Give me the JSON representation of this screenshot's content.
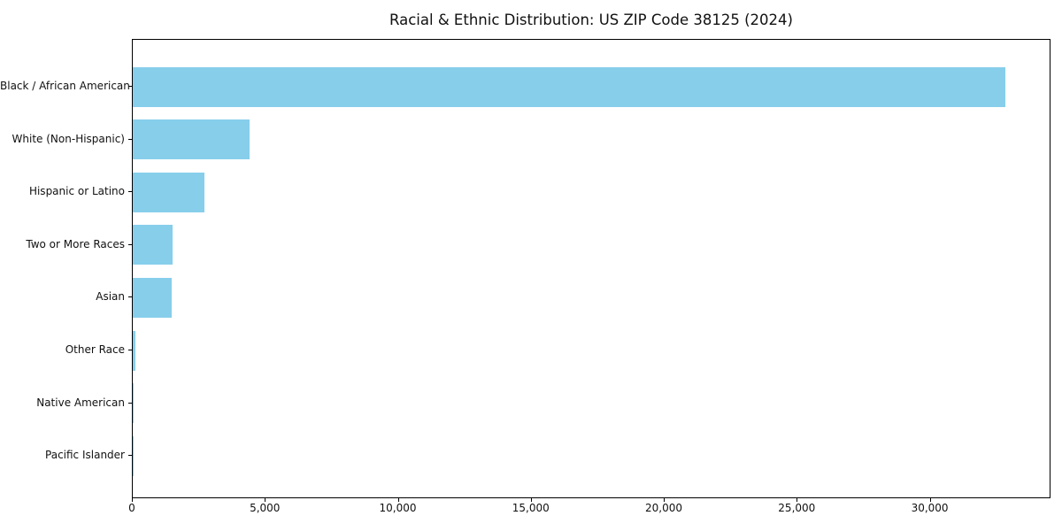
{
  "colors": {
    "bar": "#87CEEB",
    "axis": "#000000",
    "text": "#111111",
    "background": "#ffffff"
  },
  "chart_data": {
    "type": "bar",
    "orientation": "horizontal",
    "title": "Racial & Ethnic Distribution: US ZIP Code 38125 (2024)",
    "xlabel": "",
    "ylabel": "",
    "grid": false,
    "legend": false,
    "categories": [
      "Black / African American",
      "White (Non-Hispanic)",
      "Hispanic or Latino",
      "Two or More Races",
      "Asian",
      "Other Race",
      "Native American",
      "Pacific Islander"
    ],
    "values": [
      32800,
      4400,
      2700,
      1500,
      1470,
      100,
      40,
      15
    ],
    "xlim": [
      0,
      34540
    ],
    "xticks": {
      "values": [
        0,
        5000,
        10000,
        15000,
        20000,
        25000,
        30000
      ],
      "labels": [
        "0",
        "5,000",
        "10,000",
        "15,000",
        "20,000",
        "25,000",
        "30,000"
      ]
    }
  }
}
